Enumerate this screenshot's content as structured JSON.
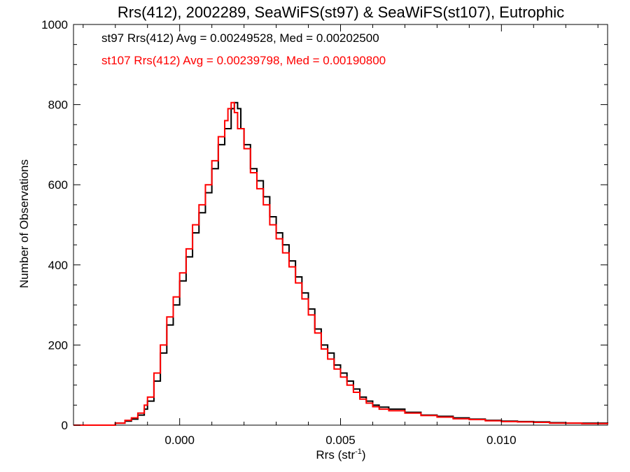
{
  "chart_data": {
    "type": "line",
    "title": "Rrs(412), 2002289, SeaWiFS(st97) & SeaWiFS(st107), Eutrophic",
    "xlabel": "Rrs (str",
    "xlabel_sup": "-1",
    "xlabel_close": ")",
    "ylabel": "Number of Observations",
    "xlim": [
      -0.0033,
      0.0133
    ],
    "ylim": [
      0,
      1000
    ],
    "xticks": [
      0.0,
      0.005,
      0.01
    ],
    "xtick_labels": [
      "0.000",
      "0.005",
      "0.010"
    ],
    "yticks": [
      0,
      200,
      400,
      600,
      800,
      1000
    ],
    "ytick_labels": [
      "0",
      "200",
      "400",
      "600",
      "800",
      "1000"
    ],
    "grid": false,
    "annotations": [
      {
        "text": "st97 Rrs(412) Avg = 0.00249528, Med = 0.00202500",
        "color": "#000000"
      },
      {
        "text": "st107 Rrs(412) Avg = 0.00239798, Med = 0.00190800",
        "color": "#ff0000"
      }
    ],
    "series": [
      {
        "color": "#000000",
        "x": [
          -0.0033,
          -0.0025,
          -0.002,
          -0.0017,
          -0.0015,
          -0.0013,
          -0.0011,
          -0.001,
          -0.0008,
          -0.0006,
          -0.0004,
          -0.0002,
          0.0,
          0.0002,
          0.0004,
          0.0006,
          0.0008,
          0.001,
          0.0012,
          0.0014,
          0.0016,
          0.0017,
          0.0018,
          0.0019,
          0.002,
          0.0022,
          0.0024,
          0.0026,
          0.0028,
          0.003,
          0.0032,
          0.0034,
          0.0036,
          0.0038,
          0.004,
          0.0042,
          0.0044,
          0.0046,
          0.0048,
          0.005,
          0.0052,
          0.0054,
          0.0056,
          0.0058,
          0.006,
          0.0062,
          0.0065,
          0.007,
          0.0075,
          0.008,
          0.0085,
          0.009,
          0.0095,
          0.01,
          0.0105,
          0.011,
          0.0115,
          0.012,
          0.0125,
          0.0133
        ],
        "y": [
          0,
          0,
          5,
          10,
          15,
          25,
          40,
          60,
          110,
          180,
          250,
          300,
          360,
          420,
          480,
          530,
          580,
          640,
          700,
          740,
          790,
          805,
          790,
          740,
          700,
          640,
          610,
          570,
          520,
          480,
          450,
          410,
          370,
          330,
          290,
          240,
          200,
          180,
          150,
          130,
          110,
          90,
          70,
          60,
          50,
          45,
          40,
          32,
          25,
          22,
          18,
          15,
          12,
          10,
          9,
          8,
          6,
          5,
          5,
          4
        ]
      },
      {
        "color": "#ff0000",
        "x": [
          -0.0033,
          -0.0025,
          -0.002,
          -0.0017,
          -0.0015,
          -0.0013,
          -0.0011,
          -0.001,
          -0.0008,
          -0.0006,
          -0.0004,
          -0.0002,
          0.0,
          0.0002,
          0.0004,
          0.0006,
          0.0008,
          0.001,
          0.0012,
          0.0014,
          0.0015,
          0.0016,
          0.0017,
          0.0018,
          0.002,
          0.0022,
          0.0024,
          0.0026,
          0.0028,
          0.003,
          0.0032,
          0.0034,
          0.0036,
          0.0038,
          0.004,
          0.0042,
          0.0044,
          0.0046,
          0.0048,
          0.005,
          0.0052,
          0.0054,
          0.0056,
          0.0058,
          0.006,
          0.0062,
          0.0065,
          0.007,
          0.0075,
          0.008,
          0.0085,
          0.009,
          0.0095,
          0.01,
          0.0105,
          0.011,
          0.0115,
          0.012,
          0.0125,
          0.0133
        ],
        "y": [
          0,
          0,
          5,
          12,
          18,
          30,
          50,
          70,
          130,
          200,
          270,
          320,
          380,
          440,
          500,
          550,
          600,
          660,
          720,
          760,
          790,
          805,
          780,
          740,
          690,
          630,
          590,
          550,
          500,
          465,
          430,
          395,
          355,
          315,
          275,
          230,
          190,
          165,
          140,
          120,
          100,
          82,
          65,
          55,
          46,
          40,
          36,
          30,
          24,
          20,
          16,
          14,
          11,
          9,
          8,
          7,
          5,
          5,
          4,
          3
        ]
      }
    ]
  }
}
